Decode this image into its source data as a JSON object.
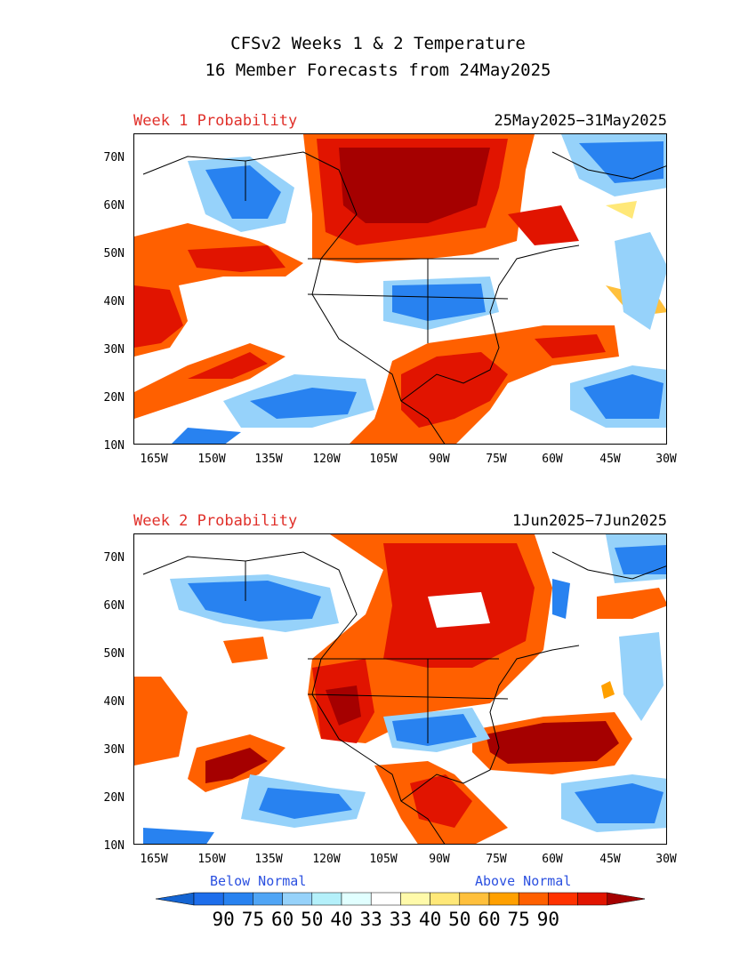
{
  "title_line1": "CFSv2 Weeks 1 & 2 Temperature",
  "title_line2": "16 Member Forecasts from 24May2025",
  "panels": [
    {
      "label": "Week 1 Probability",
      "dates": "25May2025−31May2025"
    },
    {
      "label": "Week 2 Probability",
      "dates": "1Jun2025−7Jun2025"
    }
  ],
  "lat_ticks": [
    "70N",
    "60N",
    "50N",
    "40N",
    "30N",
    "20N",
    "10N"
  ],
  "lon_ticks": [
    "165W",
    "150W",
    "135W",
    "120W",
    "105W",
    "90W",
    "75W",
    "60W",
    "45W",
    "30W"
  ],
  "legend": {
    "below_label": "Below Normal",
    "above_label": "Above Normal",
    "levels": [
      "90",
      "75",
      "60",
      "50",
      "40",
      "33",
      "33",
      "40",
      "50",
      "60",
      "75",
      "90"
    ],
    "colors": [
      "#1464d2",
      "#1e6eeb",
      "#2882f0",
      "#50a5f5",
      "#96d2fa",
      "#b4f0fa",
      "#e1ffff",
      "#ffffff",
      "#fffaaa",
      "#ffe878",
      "#ffc03c",
      "#ffa000",
      "#ff6000",
      "#ff3200",
      "#e11400",
      "#a50000"
    ]
  }
}
